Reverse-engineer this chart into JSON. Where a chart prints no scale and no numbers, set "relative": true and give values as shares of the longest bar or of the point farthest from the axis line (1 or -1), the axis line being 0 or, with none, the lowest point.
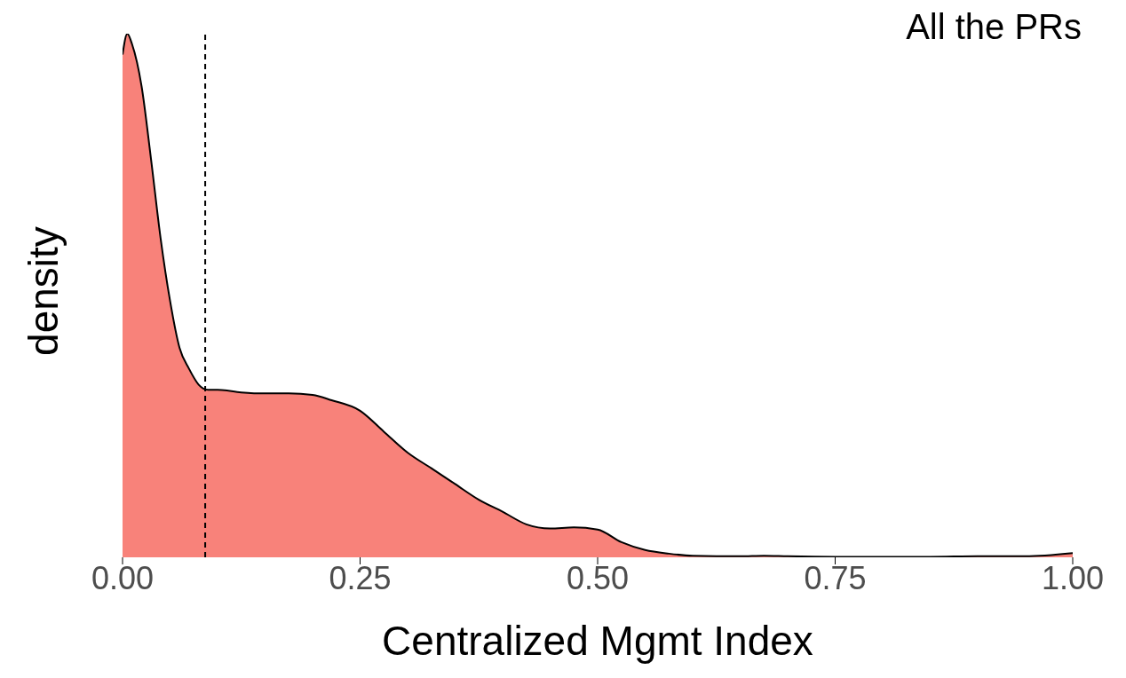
{
  "chart_data": {
    "type": "area",
    "title": "All the PRs",
    "xlabel": "Centralized Mgmt Index",
    "ylabel": "density",
    "relative": true,
    "x": [
      0,
      0.005,
      0.01,
      0.02,
      0.03,
      0.04,
      0.05,
      0.06,
      0.07,
      0.08,
      0.09,
      0.1,
      0.125,
      0.15,
      0.175,
      0.2,
      0.22,
      0.25,
      0.275,
      0.3,
      0.325,
      0.35,
      0.375,
      0.4,
      0.425,
      0.45,
      0.475,
      0.5,
      0.525,
      0.55,
      0.575,
      0.6,
      0.65,
      0.675,
      0.7,
      0.75,
      0.8,
      0.85,
      0.9,
      0.95,
      1
    ],
    "series": [
      {
        "color": "#f8827a",
        "values": [
          0.96,
          1,
          0.98,
          0.9,
          0.76,
          0.61,
          0.49,
          0.4,
          0.36,
          0.33,
          0.32,
          0.32,
          0.315,
          0.313,
          0.313,
          0.31,
          0.3,
          0.28,
          0.24,
          0.2,
          0.17,
          0.14,
          0.11,
          0.087,
          0.063,
          0.055,
          0.057,
          0.053,
          0.029,
          0.014,
          0.007,
          0.003,
          0.002,
          0.003,
          0.002,
          0.001,
          0.001,
          0.001,
          0.002,
          0.002,
          0.008
        ]
      }
    ],
    "xlim": [
      0,
      1
    ],
    "xticks": [
      {
        "value": 0,
        "label": "0.00"
      },
      {
        "value": 0.25,
        "label": "0.25"
      },
      {
        "value": 0.5,
        "label": "0.50"
      },
      {
        "value": 0.75,
        "label": "0.75"
      },
      {
        "value": 1,
        "label": "1.00"
      }
    ],
    "ref_lines": [
      {
        "axis": "x",
        "value": 0.087,
        "line_style": "dashed"
      }
    ],
    "grid": false,
    "legend": false
  }
}
